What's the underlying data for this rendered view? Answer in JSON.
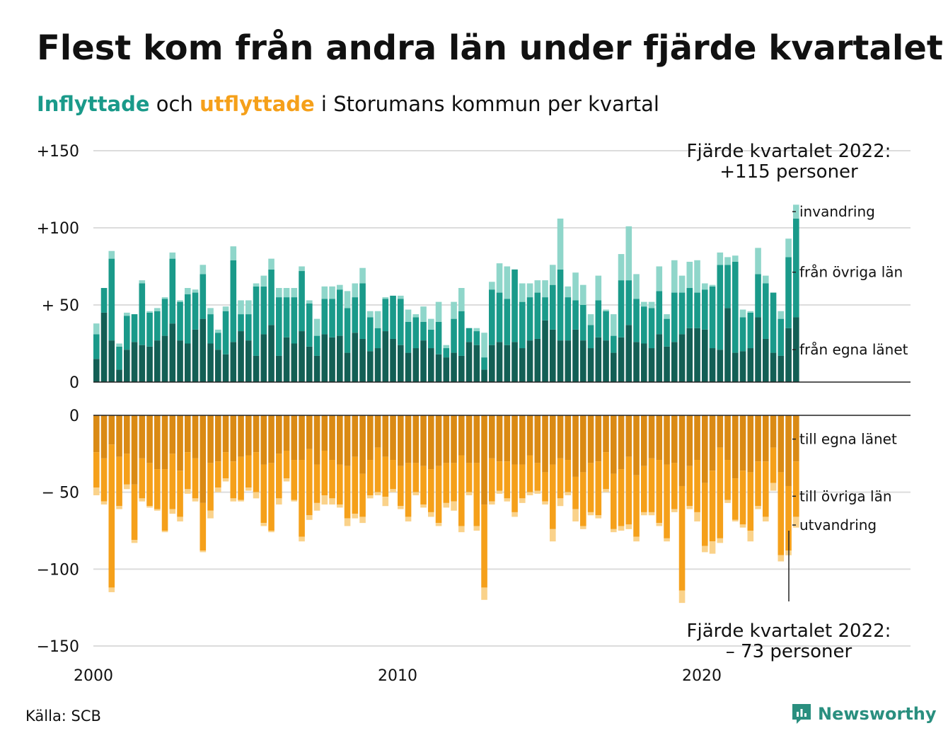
{
  "title": "Flest kom från andra län under fjärde kvartalet",
  "subtitle": {
    "part1": "Inflyttade",
    "part2": " och ",
    "part3": "utflyttade",
    "part4": " i Storumans kommun per kvartal"
  },
  "source": "Källa: SCB",
  "logo_text": "Newsworthy",
  "colors": {
    "in_egna": "#135f55",
    "in_ovriga": "#1a9a8a",
    "in_invandring": "#8fd6ca",
    "out_egna": "#da8a14",
    "out_ovriga": "#f5a01a",
    "out_utvandring": "#fad28a"
  },
  "chart_data": {
    "type": "bar",
    "stacked": true,
    "x_start": 2000,
    "x_step": 0.25,
    "x_ticks": [
      "2000",
      "2010",
      "2020"
    ],
    "y_ticks_top": [
      "+150",
      "+100",
      "+ 50",
      "0"
    ],
    "y_ticks_bottom": [
      "0",
      "− 50",
      "−100",
      "−150"
    ],
    "ylim_top": [
      0,
      150
    ],
    "ylim_bottom": [
      -150,
      0
    ],
    "grid": true,
    "inflyttade": {
      "egna": [
        15,
        45,
        27,
        8,
        21,
        26,
        24,
        23,
        27,
        30,
        38,
        27,
        25,
        34,
        41,
        25,
        21,
        18,
        26,
        33,
        27,
        17,
        31,
        37,
        17,
        29,
        25,
        33,
        23,
        17,
        31,
        29,
        30,
        19,
        32,
        28,
        20,
        22,
        33,
        28,
        24,
        19,
        22,
        27,
        22,
        18,
        16,
        19,
        17,
        26,
        24,
        8,
        24,
        26,
        24,
        26,
        22,
        27,
        28,
        40,
        34,
        27,
        27,
        34,
        27,
        22,
        29,
        27,
        19,
        29,
        37,
        26,
        25,
        22,
        31,
        23,
        26,
        31,
        35,
        35,
        34,
        22,
        21,
        48,
        19,
        20,
        22,
        42,
        28,
        19,
        17,
        35,
        42
      ],
      "ovriga": [
        16,
        16,
        53,
        15,
        22,
        18,
        40,
        22,
        19,
        24,
        42,
        25,
        32,
        24,
        29,
        19,
        11,
        28,
        53,
        11,
        17,
        45,
        31,
        36,
        38,
        26,
        30,
        39,
        28,
        13,
        23,
        25,
        30,
        29,
        23,
        36,
        22,
        13,
        21,
        28,
        30,
        20,
        20,
        12,
        12,
        21,
        6,
        22,
        29,
        9,
        9,
        8,
        36,
        32,
        30,
        47,
        30,
        28,
        30,
        15,
        29,
        46,
        28,
        19,
        23,
        15,
        24,
        19,
        11,
        37,
        29,
        28,
        24,
        26,
        28,
        18,
        32,
        27,
        26,
        23,
        26,
        40,
        55,
        28,
        59,
        22,
        23,
        28,
        36,
        39,
        24,
        46,
        64
      ],
      "invandring": [
        7,
        0,
        5,
        2,
        2,
        0,
        2,
        1,
        2,
        1,
        4,
        1,
        4,
        2,
        6,
        4,
        2,
        3,
        9,
        9,
        9,
        2,
        7,
        7,
        6,
        6,
        6,
        3,
        2,
        11,
        8,
        8,
        3,
        11,
        9,
        10,
        4,
        11,
        1,
        0,
        2,
        8,
        2,
        10,
        7,
        13,
        2,
        11,
        15,
        0,
        2,
        16,
        5,
        19,
        21,
        0,
        12,
        9,
        8,
        11,
        13,
        33,
        7,
        18,
        13,
        7,
        16,
        1,
        14,
        17,
        35,
        16,
        3,
        4,
        16,
        3,
        21,
        11,
        17,
        21,
        4,
        1,
        8,
        5,
        4,
        5,
        1,
        17,
        5,
        0,
        5,
        12,
        9
      ]
    },
    "utflyttade": {
      "egna": [
        24,
        28,
        19,
        27,
        25,
        45,
        28,
        31,
        35,
        35,
        25,
        36,
        24,
        28,
        57,
        31,
        30,
        24,
        30,
        27,
        26,
        24,
        32,
        31,
        25,
        23,
        29,
        29,
        22,
        32,
        23,
        29,
        32,
        33,
        27,
        38,
        29,
        21,
        27,
        29,
        33,
        31,
        31,
        33,
        35,
        33,
        31,
        31,
        26,
        31,
        31,
        58,
        28,
        30,
        30,
        32,
        32,
        26,
        31,
        37,
        32,
        28,
        29,
        40,
        37,
        31,
        30,
        24,
        38,
        35,
        27,
        39,
        33,
        28,
        29,
        32,
        31,
        46,
        33,
        29,
        44,
        36,
        21,
        29,
        41,
        36,
        37,
        30,
        30,
        21,
        37,
        46,
        30
      ],
      "ovriga": [
        23,
        28,
        93,
        32,
        20,
        36,
        26,
        28,
        26,
        40,
        36,
        30,
        24,
        26,
        31,
        31,
        17,
        17,
        24,
        28,
        21,
        26,
        38,
        44,
        29,
        18,
        26,
        50,
        43,
        25,
        29,
        25,
        26,
        34,
        37,
        28,
        23,
        29,
        26,
        19,
        26,
        35,
        19,
        25,
        28,
        37,
        26,
        25,
        46,
        19,
        41,
        54,
        28,
        19,
        24,
        31,
        22,
        24,
        18,
        19,
        42,
        26,
        21,
        21,
        35,
        32,
        35,
        24,
        36,
        37,
        44,
        40,
        30,
        35,
        41,
        48,
        30,
        68,
        26,
        34,
        41,
        46,
        59,
        26,
        27,
        35,
        38,
        29,
        36,
        23,
        54,
        42,
        36
      ],
      "utvandring": [
        5,
        2,
        3,
        2,
        3,
        2,
        2,
        1,
        1,
        1,
        3,
        3,
        3,
        2,
        1,
        5,
        3,
        2,
        2,
        1,
        2,
        4,
        2,
        1,
        4,
        2,
        1,
        3,
        3,
        5,
        6,
        4,
        2,
        5,
        3,
        4,
        2,
        2,
        6,
        2,
        2,
        3,
        2,
        2,
        3,
        2,
        3,
        6,
        4,
        2,
        3,
        8,
        2,
        2,
        2,
        3,
        3,
        2,
        2,
        2,
        8,
        5,
        2,
        8,
        2,
        2,
        2,
        2,
        2,
        3,
        3,
        3,
        2,
        2,
        2,
        2,
        2,
        8,
        2,
        6,
        4,
        8,
        3,
        2,
        1,
        2,
        7,
        2,
        3,
        5,
        4,
        3,
        7
      ]
    },
    "series_labels": {
      "in_invandring": "invandring",
      "in_ovriga": "från övriga län",
      "in_egna": "från egna länet",
      "out_egna": "till egna länet",
      "out_ovriga": "till övriga län",
      "out_utvandring": "utvandring"
    },
    "annotation_top": {
      "line1": "Fjärde kvartalet 2022:",
      "line2": "+115 personer"
    },
    "annotation_bottom": {
      "line1": "Fjärde kvartalet 2022:",
      "line2": "– 73 personer"
    }
  }
}
